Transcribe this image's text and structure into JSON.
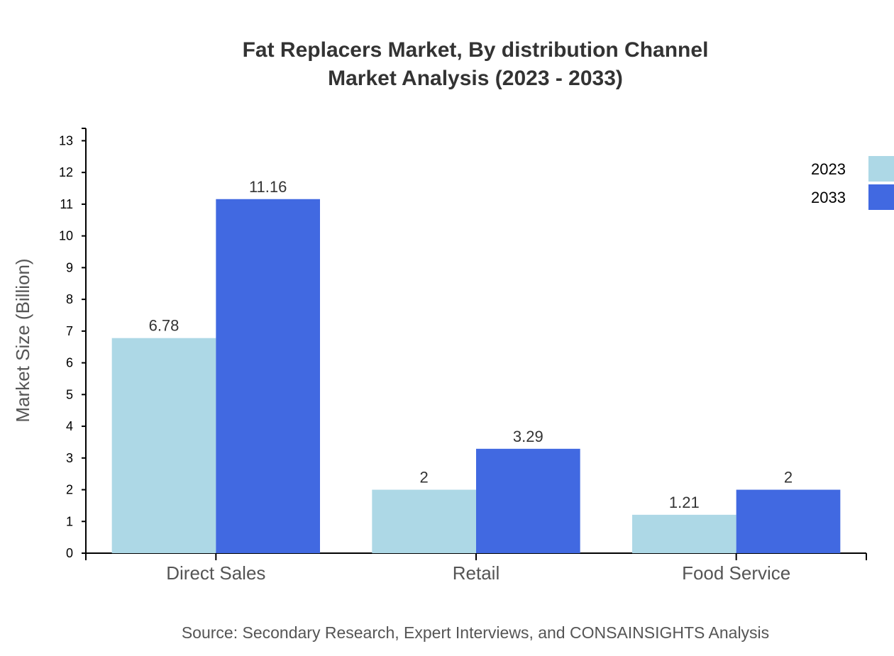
{
  "chart_data": {
    "type": "bar",
    "title": "Fat Replacers Market, By distribution Channel",
    "subtitle": "Market Analysis (2023 - 2033)",
    "xlabel": "",
    "ylabel": "Market Size (Billion)",
    "categories": [
      "Direct Sales",
      "Retail",
      "Food Service"
    ],
    "series": [
      {
        "name": "2023",
        "values": [
          6.78,
          2,
          1.21
        ],
        "color": "#add8e6"
      },
      {
        "name": "2033",
        "values": [
          11.16,
          3.29,
          2
        ],
        "color": "#4169e1"
      }
    ],
    "ylim": [
      0,
      13.39
    ],
    "yticks": [
      0,
      1,
      2,
      3,
      4,
      5,
      6,
      7,
      8,
      9,
      10,
      11,
      12,
      13
    ],
    "grid": false,
    "legend_position": "top-right",
    "source": "Source: Secondary Research, Expert Interviews, and CONSAINSIGHTS Analysis"
  }
}
